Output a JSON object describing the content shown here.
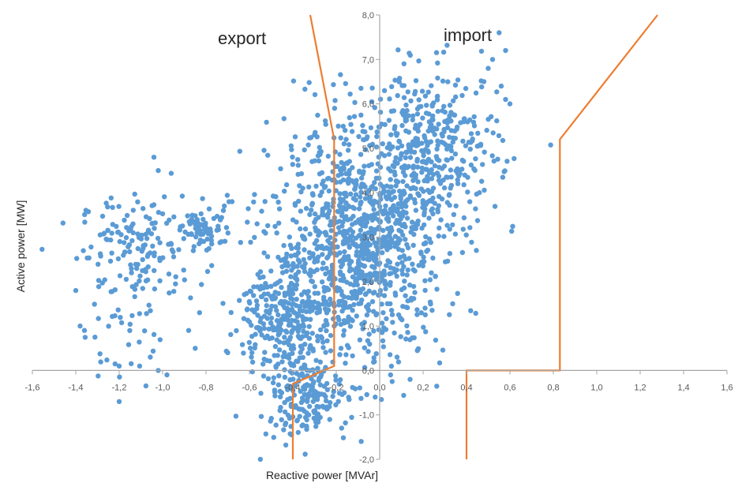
{
  "chart_data": {
    "type": "scatter",
    "xlabel": "Reactive power [MVAr]",
    "ylabel": "Active power [MW]",
    "xlim": [
      -1.6,
      1.6
    ],
    "ylim": [
      -2.0,
      8.0
    ],
    "x_ticks": [
      "-1,6",
      "-1,4",
      "-1,2",
      "-1,0",
      "-0,8",
      "-0,6",
      "-0,4",
      "-0,2",
      "0,0",
      "0,2",
      "0,4",
      "0,6",
      "0,8",
      "1,0",
      "1,2",
      "1,4",
      "1,6"
    ],
    "y_ticks": [
      "-2,0",
      "-1,0",
      "0,0",
      "1,0",
      "2,0",
      "3,0",
      "4,0",
      "5,0",
      "6,0",
      "7,0",
      "8,0"
    ],
    "grid": false,
    "legend": "none",
    "annotations": [
      "export",
      "import"
    ],
    "colors": {
      "points": "#5B9BD5",
      "boundary": "#ED7D31",
      "axis": "#A6A6A6"
    },
    "series": [
      {
        "marker": "circle",
        "clusters": [
          {
            "center": [
              -1.1,
              2.8
            ],
            "spread": [
              0.14,
              0.55
            ],
            "count": 150
          },
          {
            "center": [
              -0.8,
              3.2
            ],
            "spread": [
              0.06,
              0.25
            ],
            "count": 60
          },
          {
            "center": [
              -1.2,
              1.0
            ],
            "spread": [
              0.08,
              0.7
            ],
            "count": 40
          },
          {
            "center": [
              -0.1,
              2.8
            ],
            "spread": [
              0.2,
              1.3
            ],
            "count": 1100
          },
          {
            "center": [
              0.25,
              5.0
            ],
            "spread": [
              0.15,
              0.9
            ],
            "count": 350
          },
          {
            "center": [
              -0.35,
              -0.6
            ],
            "spread": [
              0.1,
              0.45
            ],
            "count": 180
          },
          {
            "center": [
              -0.45,
              1.2
            ],
            "spread": [
              0.1,
              0.6
            ],
            "count": 250
          }
        ],
        "points": [
          [
            -1.04,
            4.8
          ],
          [
            -1.02,
            4.5
          ],
          [
            -1.2,
            0.1
          ],
          [
            -1.2,
            -0.7
          ],
          [
            -1.02,
            0.0
          ],
          [
            -0.98,
            -0.1
          ],
          [
            -0.85,
            0.5
          ],
          [
            -0.88,
            0.9
          ],
          [
            -0.83,
            1.3
          ],
          [
            -0.7,
            0.4
          ],
          [
            -0.72,
            3.6
          ],
          [
            -0.68,
            3.8
          ],
          [
            -1.4,
            1.8
          ],
          [
            -1.38,
            1.0
          ],
          [
            -1.36,
            0.9
          ],
          [
            -0.55,
            -2.0
          ],
          [
            0.55,
            7.6
          ],
          [
            0.58,
            7.2
          ],
          [
            0.6,
            6.0
          ],
          [
            0.58,
            6.1
          ],
          [
            0.56,
            6.4
          ],
          [
            0.48,
            6.5
          ],
          [
            0.5,
            6.8
          ],
          [
            0.52,
            7.0
          ],
          [
            0.14,
            -0.2
          ],
          [
            0.05,
            -0.1
          ],
          [
            0.08,
            0.3
          ]
        ]
      }
    ],
    "boundaries": [
      {
        "name": "export",
        "points": [
          [
            -0.32,
            8.0
          ],
          [
            -0.21,
            5.2
          ],
          [
            -0.21,
            0.1
          ],
          [
            -0.4,
            -0.3
          ],
          [
            -0.4,
            -2.0
          ]
        ]
      },
      {
        "name": "import",
        "points": [
          [
            1.28,
            8.0
          ],
          [
            0.83,
            5.2
          ],
          [
            0.83,
            0.0
          ],
          [
            0.4,
            0.0
          ],
          [
            0.4,
            -2.0
          ]
        ]
      }
    ]
  }
}
